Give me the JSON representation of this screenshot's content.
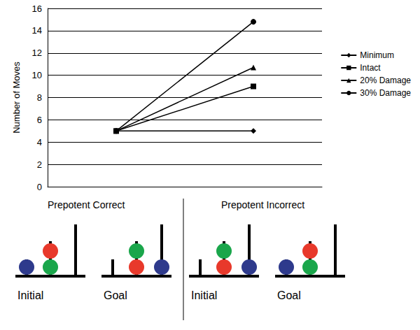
{
  "chart_data": {
    "type": "line",
    "categories": [
      null,
      null
    ],
    "ylabel": "Number of Moves",
    "ylim": [
      0,
      16
    ],
    "yticks": [
      0,
      2,
      4,
      6,
      8,
      10,
      12,
      14,
      16
    ],
    "grid": true,
    "legend": "right",
    "series": [
      {
        "name": "Minimum",
        "color": "#000000",
        "marker": "diamond",
        "values": [
          5,
          5
        ]
      },
      {
        "name": "Intact",
        "color": "#000000",
        "marker": "square",
        "values": [
          5,
          9
        ]
      },
      {
        "name": "20% Damage",
        "color": "#000000",
        "marker": "triangle",
        "values": [
          5,
          10.7
        ]
      },
      {
        "name": "30% Damage",
        "color": "#000000",
        "marker": "circle",
        "values": [
          5,
          14.8
        ]
      }
    ]
  },
  "diagram": {
    "panels": [
      {
        "title": "Prepotent Correct",
        "states": [
          {
            "label": "Initial",
            "pegs": [
              [
                "#2e3a8c"
              ],
              [
                "#1aa64b",
                "#e8392b"
              ],
              []
            ]
          },
          {
            "label": "Goal",
            "pegs": [
              [],
              [
                "#e8392b",
                "#1aa64b"
              ],
              [
                "#2e3a8c"
              ]
            ]
          }
        ]
      },
      {
        "title": "Prepotent Incorrect",
        "states": [
          {
            "label": "Initial",
            "pegs": [
              [],
              [
                "#e8392b",
                "#1aa64b"
              ],
              [
                "#2e3a8c"
              ]
            ]
          },
          {
            "label": "Goal",
            "pegs": [
              [
                "#2e3a8c"
              ],
              [
                "#1aa64b",
                "#e8392b"
              ],
              []
            ]
          }
        ]
      }
    ]
  }
}
